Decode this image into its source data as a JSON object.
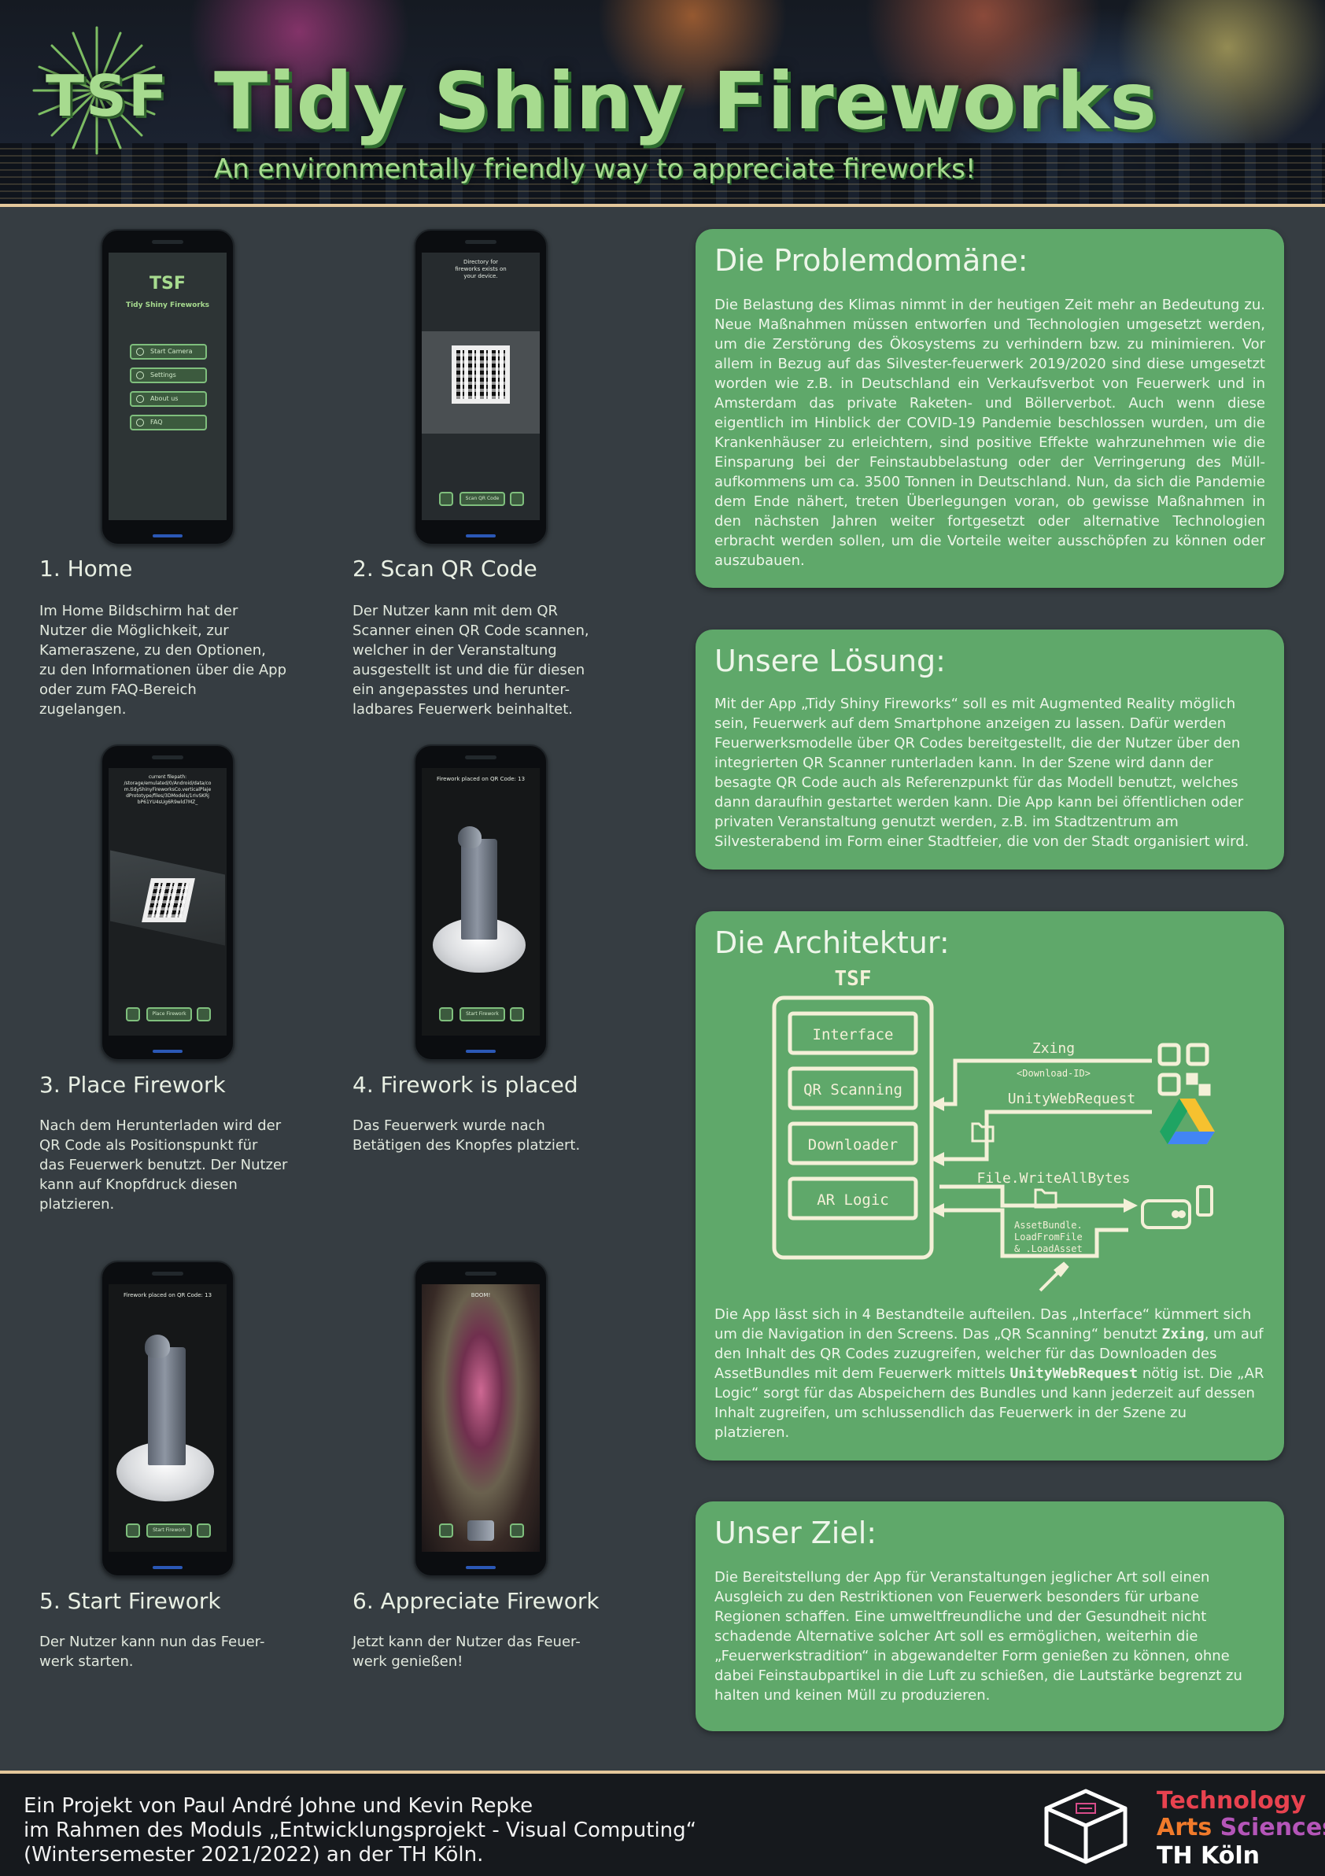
{
  "header": {
    "logo": "TSF",
    "title": "Tidy Shiny Fireworks",
    "subtitle": "An environmentally friendly way to appreciate fireworks!"
  },
  "phones": {
    "home": {
      "logo": "TSF",
      "app_name": "Tidy Shiny Fireworks",
      "buttons": [
        "Start Camera",
        "Settings",
        "About us",
        "FAQ"
      ]
    },
    "scan": {
      "top_text": "Directory for\nfireworks exists on\nyour device.",
      "button": "Scan QR Code"
    },
    "place": {
      "top_text": "current filepath:\n/storage/emulated/0/Android/data/co\nm.tidyShinyFireworksCo.verticalPlaje\ndPrototype/files/3DModels/1rIvSKRj\nbP61YU4sUg6R9wld7MZ_",
      "button": "Place Firework"
    },
    "placed": {
      "top_text": "Firework placed on QR Code: 13",
      "button": "Start Firework"
    },
    "start": {
      "top_text": "Firework placed on QR Code: 13",
      "button": "Start Firework"
    },
    "appreciate": {
      "top_text": "BOOM!"
    }
  },
  "steps": [
    {
      "title": "1. Home",
      "desc": "Im Home Bildschirm hat der\nNutzer die Möglichkeit, zur\nKameraszene, zu den Optionen,\nzu den Informationen über die App\noder zum FAQ-Bereich\nzugelangen."
    },
    {
      "title": "2. Scan QR Code",
      "desc": "Der Nutzer kann mit dem QR\nScanner einen QR Code scannen,\nwelcher in der Veranstaltung\nausgestellt ist und die für diesen\nein angepasstes und herunter-\nladbares Feuerwerk beinhaltet."
    },
    {
      "title": "3. Place Firework",
      "desc": "Nach dem Herunterladen wird der\nQR Code als Positionspunkt für\ndas Feuerwerk benutzt. Der Nutzer\nkann auf Knopfdruck diesen\nplatzieren."
    },
    {
      "title": "4. Firework is placed",
      "desc": "Das Feuerwerk wurde nach\nBetätigen des Knopfes platziert."
    },
    {
      "title": "5. Start Firework",
      "desc": "Der Nutzer kann nun das Feuer-\nwerk starten."
    },
    {
      "title": "6. Appreciate Firework",
      "desc": "Jetzt kann der Nutzer das Feuer-\nwerk genießen!"
    }
  ],
  "cards": {
    "problem": {
      "title": "Die Problemdomäne:",
      "body": "Die Belastung des Klimas nimmt in der heutigen Zeit mehr an Bedeutung zu. Neue Maßnahmen müssen entworfen und Technologien umgesetzt werden, um die Zerstörung des Ökosystems zu verhindern bzw. zu minimieren. Vor allem in Bezug auf das Silvester-feuerwerk 2019/2020 sind diese umgesetzt worden wie z.B. in Deutschland ein Verkaufsverbot von Feuerwerk und in Amsterdam das private Raketen- und Böllerverbot. Auch wenn diese eigentlich im Hinblick der COVID-19 Pandemie beschlossen wurden, um die Krankenhäuser zu erleichtern, sind positive Effekte wahrzunehmen wie die Einsparung bei der Feinstaubbelastung oder der Verringerung des Müll-aufkommens um ca. 3500 Tonnen in Deutschland. Nun, da sich die Pandemie dem Ende nähert, treten Überlegungen voran, ob gewisse Maßnahmen in den nächsten Jahren weiter fortgesetzt oder alternative Technologien erbracht werden sollen, um die Vorteile weiter ausschöpfen zu können oder auszubauen."
    },
    "solution": {
      "title": "Unsere Lösung:",
      "body": "Mit der App „Tidy Shiny Fireworks“ soll es mit Augmented Reality möglich sein, Feuerwerk auf dem Smartphone anzeigen zu lassen. Dafür werden Feuerwerksmodelle über QR Codes bereitgestellt, die der Nutzer über den integrierten QR Scanner runterladen kann. In der Szene wird dann der besagte QR Code auch als Referenzpunkt für das Modell benutzt, welches dann daraufhin gestartet werden kann. Die App kann bei öffentlichen oder privaten Veranstaltung genutzt werden, z.B. im Stadtzentrum am Silvesterabend im Form einer Stadtfeier, die von der Stadt organisiert wird."
    },
    "architecture": {
      "title": "Die Architektur:",
      "diagram": {
        "app_label": "TSF",
        "modules": [
          "Interface",
          "QR Scanning",
          "Downloader",
          "AR Logic"
        ],
        "zxing": "Zxing",
        "download_id": "<Download-ID>",
        "unity_web_request": "UnityWebRequest",
        "write_all_bytes": "File.WriteAllBytes",
        "asset_bundle": [
          "AssetBundle.",
          "LoadFromFile",
          "& .LoadAsset"
        ]
      },
      "body_1": "Die App lässt sich in 4 Bestandteile aufteilen. Das „Interface“ kümmert sich um die Navigation in den Screens. Das „QR Scanning“ benutzt ",
      "body_zxing": "Zxing",
      "body_2": ", um auf den Inhalt des QR Codes zuzugreifen, welcher für das Downloaden des AssetBundles mit dem Feuerwerk mittels ",
      "body_uwr": "UnityWebRequest",
      "body_3": " nötig ist. Die „AR Logic“ sorgt für das Abspeichern des Bundles und kann jederzeit auf dessen Inhalt zugreifen, um schlussendlich das Feuerwerk in der Szene zu platzieren."
    },
    "goal": {
      "title": "Unser Ziel:",
      "body": "Die Bereitstellung der App für Veranstaltungen jeglicher Art soll einen Ausgleich zu den Restriktionen von Feuerwerk besonders für urbane Regionen schaffen. Eine umweltfreundliche und der Gesundheit nicht schadende Alternative solcher Art soll es ermöglichen, weiterhin die „Feuerwerkstradition“ in abgewandelter Form genießen zu können, ohne dabei Feinstaubpartikel in die Luft zu schießen, die Lautstärke begrenzt zu halten und keinen Müll zu produzieren."
    }
  },
  "footer": {
    "credit": "Ein Projekt von Paul André Johne und Kevin Repke\nim Rahmen des Moduls „Entwicklungsprojekt - Visual Computing“\n(Wintersemester 2021/2022) an der TH Köln.",
    "th_technology": "Technology",
    "th_arts": "Arts",
    "th_sciences": "Sciences",
    "th_koeln": "TH Köln"
  },
  "colors": {
    "background": "#363d42",
    "card_green": "#5fa86a",
    "title_green": "#a7db8f",
    "rule_beige": "#e3c79b",
    "th_red": "#e8424f",
    "th_orange": "#f07a2b",
    "th_purple": "#b455b8"
  },
  "icons": [
    "burst-logo-icon",
    "camera-icon",
    "gear-icon",
    "info-icon",
    "question-icon",
    "qr-code-icon",
    "google-drive-icon",
    "folder-icon",
    "device-icon",
    "phone-icon",
    "pen-icon",
    "th-koeln-box-icon"
  ]
}
